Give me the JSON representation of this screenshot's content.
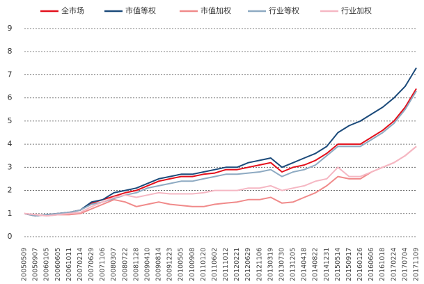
{
  "chart_data": {
    "type": "line",
    "categories": [
      "20050509",
      "20050907",
      "20060105",
      "20060605",
      "20061011",
      "20070214",
      "20070629",
      "20071106",
      "20080307",
      "20080722",
      "20081128",
      "20090410",
      "20090814",
      "20091223",
      "20100505",
      "20100908",
      "20110120",
      "20110602",
      "20111012",
      "20120221",
      "20120629",
      "20121106",
      "20130319",
      "20130730",
      "20131205",
      "20140418",
      "20140822",
      "20141231",
      "20150514",
      "20150917",
      "20160126",
      "20160606",
      "20161018",
      "20170224",
      "20170704",
      "20171109"
    ],
    "series": [
      {
        "name": "全市场",
        "color": "#e3101c",
        "values": [
          1.0,
          0.9,
          0.95,
          1.0,
          1.05,
          1.15,
          1.45,
          1.6,
          1.75,
          1.9,
          2.0,
          2.2,
          2.4,
          2.5,
          2.6,
          2.6,
          2.7,
          2.75,
          2.9,
          2.9,
          3.0,
          3.1,
          3.2,
          2.8,
          3.0,
          3.1,
          3.3,
          3.6,
          4.0,
          4.0,
          4.0,
          4.3,
          4.6,
          5.0,
          5.6,
          6.4
        ]
      },
      {
        "name": "市值等权",
        "color": "#1b4a7a",
        "values": [
          1.0,
          0.9,
          0.95,
          1.0,
          1.05,
          1.15,
          1.5,
          1.6,
          1.9,
          2.0,
          2.1,
          2.3,
          2.5,
          2.6,
          2.7,
          2.7,
          2.8,
          2.9,
          3.0,
          3.0,
          3.2,
          3.3,
          3.4,
          3.0,
          3.2,
          3.4,
          3.6,
          3.9,
          4.5,
          4.8,
          5.0,
          5.3,
          5.6,
          6.0,
          6.5,
          7.3
        ]
      },
      {
        "name": "市值加权",
        "color": "#f08a8a",
        "values": [
          1.0,
          0.95,
          0.9,
          0.95,
          0.95,
          1.0,
          1.2,
          1.4,
          1.6,
          1.5,
          1.3,
          1.4,
          1.5,
          1.4,
          1.35,
          1.3,
          1.3,
          1.4,
          1.45,
          1.5,
          1.6,
          1.6,
          1.7,
          1.45,
          1.5,
          1.7,
          1.9,
          2.2,
          2.6,
          2.5,
          2.5,
          2.8,
          3.0,
          3.2,
          3.5,
          3.9
        ]
      },
      {
        "name": "行业等权",
        "color": "#8eaac2",
        "values": [
          1.0,
          0.9,
          0.95,
          1.0,
          1.05,
          1.15,
          1.4,
          1.5,
          1.65,
          1.8,
          1.9,
          2.1,
          2.2,
          2.3,
          2.4,
          2.4,
          2.5,
          2.6,
          2.7,
          2.7,
          2.75,
          2.8,
          2.9,
          2.6,
          2.8,
          2.9,
          3.1,
          3.5,
          3.9,
          3.9,
          3.9,
          4.2,
          4.5,
          4.9,
          5.5,
          6.3
        ]
      },
      {
        "name": "行业加权",
        "color": "#f5b7c3",
        "values": [
          1.0,
          0.95,
          0.9,
          0.95,
          1.0,
          1.05,
          1.3,
          1.5,
          1.7,
          1.8,
          1.7,
          1.8,
          1.9,
          1.85,
          1.85,
          1.85,
          1.9,
          2.0,
          2.0,
          2.0,
          2.1,
          2.1,
          2.2,
          2.0,
          2.1,
          2.2,
          2.4,
          2.5,
          3.0,
          2.6,
          2.6,
          2.8,
          3.0,
          3.2,
          3.5,
          3.9
        ]
      }
    ],
    "ylim": [
      0,
      9
    ],
    "yticks": [
      0,
      1,
      2,
      3,
      4,
      5,
      6,
      7,
      8,
      9
    ],
    "grid": true
  }
}
